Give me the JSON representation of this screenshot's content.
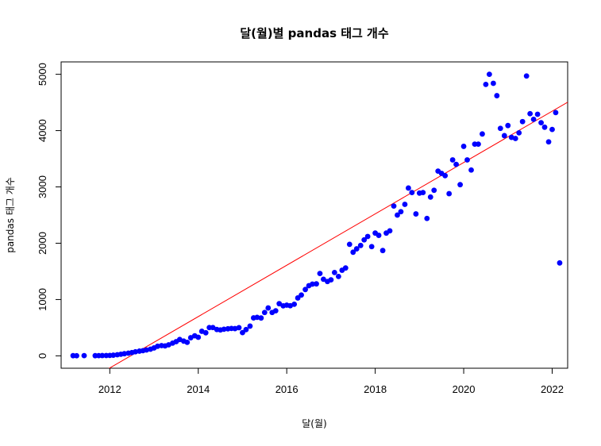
{
  "chart_data": {
    "type": "scatter",
    "title": "달(월)별 pandas 태그 개수",
    "xlabel": "달(월)",
    "ylabel": "pandas 태그 개수",
    "xlim": [
      2010.9,
      2022.35
    ],
    "ylim": [
      -220,
      5220
    ],
    "x_ticks": [
      2012,
      2014,
      2016,
      2018,
      2020,
      2022
    ],
    "x_tick_labels": [
      "2012",
      "2014",
      "2016",
      "2018",
      "2020",
      "2022"
    ],
    "y_ticks": [
      0,
      1000,
      2000,
      3000,
      4000,
      5000
    ],
    "y_tick_labels": [
      "0",
      "1000",
      "2000",
      "3000",
      "4000",
      "5000"
    ],
    "grid": false,
    "legend": "none",
    "point_color": "#0000ff",
    "line_color": "#ff0000",
    "regression_line": {
      "slope": 456,
      "intercept_at_2012": -215
    },
    "points": [
      [
        2011.17,
        3
      ],
      [
        2011.25,
        2
      ],
      [
        2011.42,
        4
      ],
      [
        2011.67,
        3
      ],
      [
        2011.75,
        4
      ],
      [
        2011.83,
        5
      ],
      [
        2011.92,
        6
      ],
      [
        2012.0,
        7
      ],
      [
        2012.08,
        12
      ],
      [
        2012.17,
        20
      ],
      [
        2012.25,
        28
      ],
      [
        2012.33,
        38
      ],
      [
        2012.42,
        48
      ],
      [
        2012.5,
        58
      ],
      [
        2012.58,
        72
      ],
      [
        2012.67,
        84
      ],
      [
        2012.75,
        92
      ],
      [
        2012.83,
        104
      ],
      [
        2012.92,
        118
      ],
      [
        2013.0,
        140
      ],
      [
        2013.08,
        170
      ],
      [
        2013.17,
        182
      ],
      [
        2013.25,
        176
      ],
      [
        2013.33,
        196
      ],
      [
        2013.42,
        226
      ],
      [
        2013.5,
        252
      ],
      [
        2013.58,
        290
      ],
      [
        2013.67,
        262
      ],
      [
        2013.75,
        240
      ],
      [
        2013.83,
        322
      ],
      [
        2013.92,
        356
      ],
      [
        2014.0,
        330
      ],
      [
        2014.08,
        436
      ],
      [
        2014.17,
        410
      ],
      [
        2014.25,
        502
      ],
      [
        2014.33,
        502
      ],
      [
        2014.42,
        468
      ],
      [
        2014.5,
        460
      ],
      [
        2014.58,
        472
      ],
      [
        2014.67,
        480
      ],
      [
        2014.75,
        486
      ],
      [
        2014.83,
        484
      ],
      [
        2014.92,
        500
      ],
      [
        2015.0,
        412
      ],
      [
        2015.08,
        466
      ],
      [
        2015.17,
        528
      ],
      [
        2015.25,
        674
      ],
      [
        2015.33,
        684
      ],
      [
        2015.42,
        672
      ],
      [
        2015.5,
        770
      ],
      [
        2015.58,
        850
      ],
      [
        2015.67,
        770
      ],
      [
        2015.75,
        800
      ],
      [
        2015.83,
        926
      ],
      [
        2015.92,
        888
      ],
      [
        2016.0,
        900
      ],
      [
        2016.08,
        890
      ],
      [
        2016.17,
        916
      ],
      [
        2016.25,
        1028
      ],
      [
        2016.33,
        1080
      ],
      [
        2016.42,
        1178
      ],
      [
        2016.5,
        1246
      ],
      [
        2016.58,
        1274
      ],
      [
        2016.67,
        1278
      ],
      [
        2016.75,
        1462
      ],
      [
        2016.83,
        1360
      ],
      [
        2016.92,
        1320
      ],
      [
        2017.0,
        1350
      ],
      [
        2017.08,
        1480
      ],
      [
        2017.17,
        1410
      ],
      [
        2017.25,
        1520
      ],
      [
        2017.33,
        1560
      ],
      [
        2017.42,
        1980
      ],
      [
        2017.5,
        1840
      ],
      [
        2017.58,
        1900
      ],
      [
        2017.67,
        1960
      ],
      [
        2017.75,
        2060
      ],
      [
        2017.83,
        2120
      ],
      [
        2017.92,
        1940
      ],
      [
        2018.0,
        2180
      ],
      [
        2018.08,
        2140
      ],
      [
        2018.17,
        1870
      ],
      [
        2018.25,
        2180
      ],
      [
        2018.33,
        2220
      ],
      [
        2018.42,
        2660
      ],
      [
        2018.5,
        2500
      ],
      [
        2018.58,
        2560
      ],
      [
        2018.67,
        2690
      ],
      [
        2018.75,
        2980
      ],
      [
        2018.83,
        2900
      ],
      [
        2018.92,
        2520
      ],
      [
        2019.0,
        2890
      ],
      [
        2019.08,
        2900
      ],
      [
        2019.17,
        2440
      ],
      [
        2019.25,
        2820
      ],
      [
        2019.33,
        2940
      ],
      [
        2019.42,
        3280
      ],
      [
        2019.5,
        3240
      ],
      [
        2019.58,
        3200
      ],
      [
        2019.67,
        2880
      ],
      [
        2019.75,
        3480
      ],
      [
        2019.83,
        3400
      ],
      [
        2019.92,
        3040
      ],
      [
        2020.0,
        3720
      ],
      [
        2020.08,
        3480
      ],
      [
        2020.17,
        3300
      ],
      [
        2020.25,
        3760
      ],
      [
        2020.33,
        3760
      ],
      [
        2020.42,
        3940
      ],
      [
        2020.5,
        4820
      ],
      [
        2020.58,
        5000
      ],
      [
        2020.67,
        4840
      ],
      [
        2020.75,
        4620
      ],
      [
        2020.83,
        4040
      ],
      [
        2020.92,
        3910
      ],
      [
        2021.0,
        4090
      ],
      [
        2021.08,
        3880
      ],
      [
        2021.17,
        3860
      ],
      [
        2021.25,
        3960
      ],
      [
        2021.33,
        4160
      ],
      [
        2021.42,
        4970
      ],
      [
        2021.5,
        4300
      ],
      [
        2021.58,
        4200
      ],
      [
        2021.67,
        4290
      ],
      [
        2021.75,
        4140
      ],
      [
        2021.83,
        4060
      ],
      [
        2021.92,
        3800
      ],
      [
        2022.0,
        4020
      ],
      [
        2022.08,
        4320
      ],
      [
        2022.17,
        1650
      ]
    ]
  }
}
